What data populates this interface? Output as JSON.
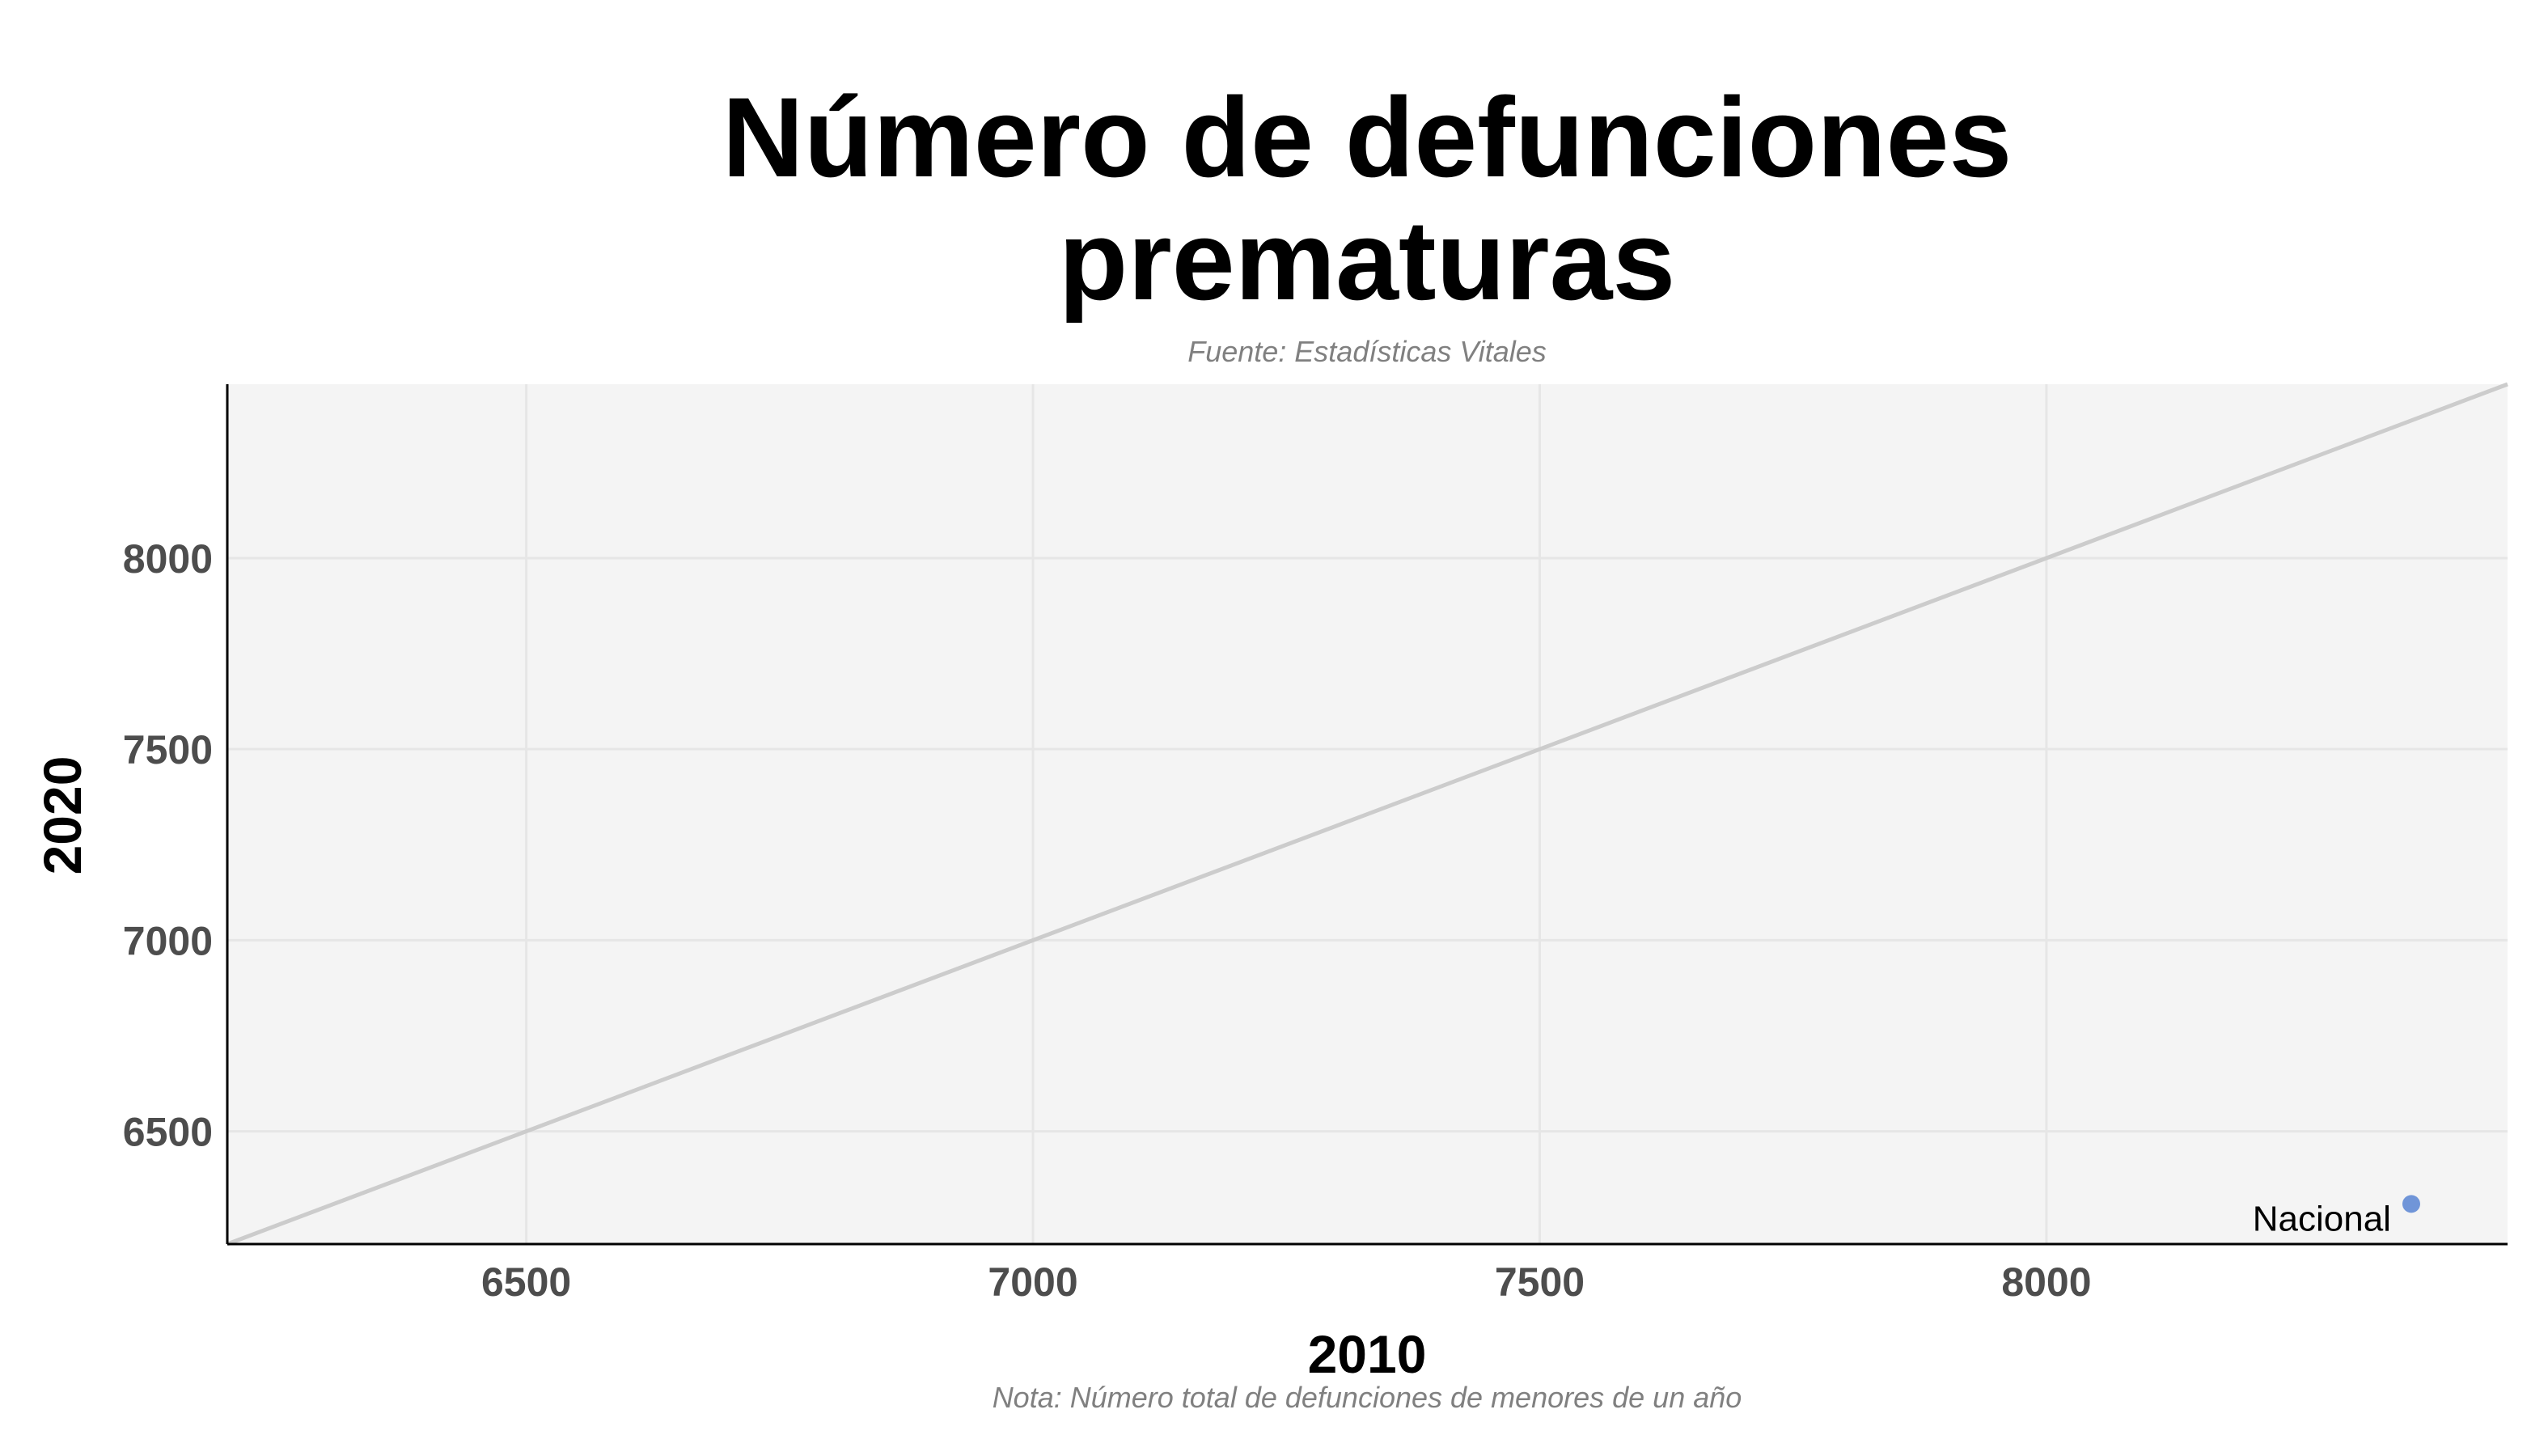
{
  "chart_data": {
    "type": "scatter",
    "title_lines": [
      "Número de defunciones",
      "prematuras"
    ],
    "subtitle": "Fuente: Estadísticas Vitales",
    "caption": "Nota: Número total de defunciones de menores de un año",
    "xlabel": "2010",
    "ylabel": "2020",
    "xlim": [
      6205,
      8455
    ],
    "ylim": [
      6205,
      8455
    ],
    "x_ticks": [
      6500,
      7000,
      7500,
      8000
    ],
    "y_ticks": [
      6500,
      7000,
      7500,
      8000
    ],
    "x_tick_labels": [
      "6500",
      "7000",
      "7500",
      "8000"
    ],
    "y_tick_labels": [
      "6500",
      "7000",
      "7500",
      "8000"
    ],
    "grid": true,
    "reference_line": "y = x",
    "points": [
      {
        "label": "Nacional",
        "x": 8360,
        "y": 6310
      }
    ],
    "colors": {
      "panel_background": "#f4f4f4",
      "grid": "#e6e6e6",
      "reference_line": "#cccccc",
      "point": "#7095d8",
      "axis": "#000000"
    }
  }
}
